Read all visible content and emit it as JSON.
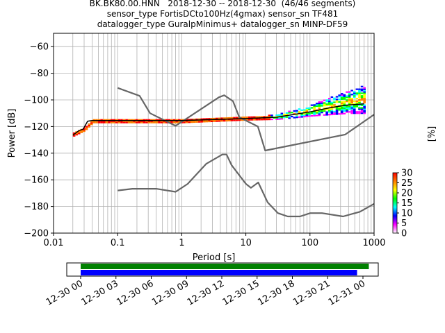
{
  "title": {
    "line1": "BK.BK80.00.HNN   2018-12-30 -- 2018-12-30  (46/46 segments)",
    "line2": "sensor_type FortisDCto100Hz(4gmax) sensor_sn TF481",
    "line3": "datalogger_type GuralpMinimus+ datalogger_sn MINP-DF59"
  },
  "chart_data": [
    {
      "type": "heatmap",
      "subtype": "ppsd",
      "xlabel": "Period [s]",
      "ylabel": "Power [dB]",
      "xscale": "log",
      "xlim": [
        0.01,
        1000
      ],
      "ylim": [
        -200,
        -50
      ],
      "xticks": [
        0.01,
        0.1,
        1,
        10,
        100,
        1000
      ],
      "xtick_labels": [
        "0.01",
        "0.1",
        "1",
        "10",
        "100",
        "1000"
      ],
      "yticks": [
        -200,
        -180,
        -160,
        -140,
        -120,
        -100,
        -80,
        -60
      ],
      "grid": true,
      "colorbar": {
        "label": "[%]",
        "range": [
          0,
          30
        ],
        "ticks": [
          0,
          5,
          10,
          15,
          20,
          25,
          30
        ],
        "colormap": "pqlx",
        "colors": [
          "#ffffff",
          "#ff00ff",
          "#0000ff",
          "#00ffff",
          "#00ff00",
          "#ffff00",
          "#ff7f00",
          "#ff0000"
        ]
      },
      "series": [
        {
          "role": "model",
          "color": "#666666",
          "points": [
            [
              0.1,
              -91
            ],
            [
              0.22,
              -97
            ],
            [
              0.32,
              -110
            ],
            [
              0.8,
              -119.5
            ],
            [
              3.8,
              -98
            ],
            [
              4.6,
              -96.5
            ],
            [
              6.3,
              -101
            ],
            [
              7.9,
              -113
            ],
            [
              15.4,
              -120
            ],
            [
              20,
              -138
            ],
            [
              354.8,
              -126
            ],
            [
              1000,
              -111
            ]
          ]
        },
        {
          "role": "model",
          "color": "#666666",
          "points": [
            [
              0.1,
              -168
            ],
            [
              0.17,
              -166.7
            ],
            [
              0.4,
              -166.7
            ],
            [
              0.8,
              -169
            ],
            [
              1.24,
              -163
            ],
            [
              2.4,
              -148
            ],
            [
              4.3,
              -141
            ],
            [
              5,
              -141
            ],
            [
              6,
              -149
            ],
            [
              10,
              -163
            ],
            [
              12,
              -166
            ],
            [
              15.6,
              -162
            ],
            [
              21.9,
              -177
            ],
            [
              31.6,
              -185
            ],
            [
              45,
              -187.5
            ],
            [
              70,
              -187.5
            ],
            [
              101,
              -185
            ],
            [
              154,
              -185
            ],
            [
              328,
              -187.5
            ],
            [
              600,
              -184
            ],
            [
              1000,
              -178
            ]
          ]
        },
        {
          "role": "mean",
          "color": "#000000",
          "points": [
            [
              0.02,
              -126.5
            ],
            [
              0.025,
              -123
            ],
            [
              0.029,
              -122
            ],
            [
              0.034,
              -116
            ],
            [
              0.04,
              -115.5
            ],
            [
              1,
              -115.5
            ],
            [
              10,
              -114
            ],
            [
              30,
              -113
            ],
            [
              100,
              -109
            ],
            [
              200,
              -106
            ],
            [
              350,
              -104
            ],
            [
              700,
              -103
            ]
          ]
        }
      ],
      "density_envelope": {
        "x": [
          0.02,
          0.03,
          0.04,
          1,
          10,
          30,
          50,
          100,
          200,
          400,
          700
        ],
        "low": [
          -127,
          -123,
          -117,
          -117,
          -115,
          -114.5,
          -113.5,
          -112,
          -111,
          -110,
          -110
        ],
        "high": [
          -125,
          -120,
          -114.5,
          -114.5,
          -113,
          -111,
          -108,
          -104,
          -98,
          -93,
          -89
        ]
      }
    },
    {
      "type": "timeline",
      "ticks": [
        "12-30 00",
        "12-30 03",
        "12-30 06",
        "12-30 09",
        "12-30 12",
        "12-30 15",
        "12-30 18",
        "12-30 21",
        "12-31 00"
      ],
      "bars": [
        {
          "color": "#008000",
          "start_hours": 0,
          "end_hours": 24.5
        },
        {
          "color": "#0000ff",
          "start_hours": 0,
          "end_hours": 23.5
        }
      ]
    }
  ]
}
